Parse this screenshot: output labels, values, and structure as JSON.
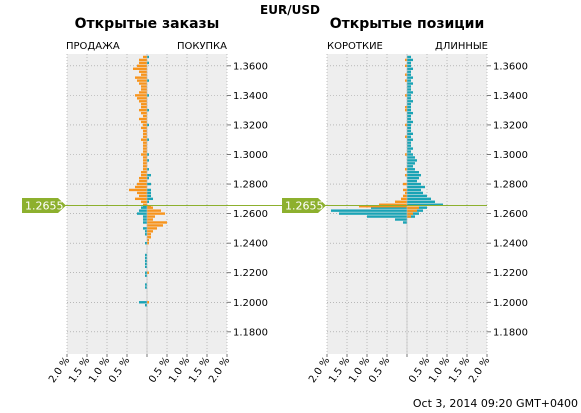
{
  "title": "EUR/USD",
  "footer": "Oct 3, 2014 09:20 GMT+0400",
  "current_price": 1.2655,
  "current_price_label": "1.2655",
  "colors": {
    "sell": "#f7941d",
    "buy": "#1aa3b5",
    "price_line": "#8db02e",
    "plot_bg": "#eeeeee",
    "grid": "#999999"
  },
  "chart_data": [
    {
      "type": "bar",
      "title": "Открытые заказы",
      "left_label": "ПРОДАЖА",
      "right_label": "ПОКУПКА",
      "orientation": "horizontal",
      "ylim": [
        1.165,
        1.368
      ],
      "xlim": [
        -2.0,
        2.0
      ],
      "y_ticks": [
        1.18,
        1.2,
        1.22,
        1.24,
        1.26,
        1.28,
        1.3,
        1.32,
        1.34,
        1.36
      ],
      "y_tick_labels": [
        "1.1800",
        "1.2000",
        "1.2200",
        "1.2400",
        "1.2600",
        "1.2800",
        "1.3000",
        "1.3200",
        "1.3400",
        "1.3600"
      ],
      "x_tick_labels": [
        "2.0 %",
        "1.5 %",
        "1.0 %",
        "0.5 %",
        "",
        "0.5 %",
        "1.0 %",
        "1.5 %",
        "2.0 %"
      ],
      "grid": true,
      "series": [
        {
          "name": "ПРОДАЖА",
          "side": "left",
          "color": "#f7941d",
          "points": [
            [
              1.366,
              0.1
            ],
            [
              1.364,
              0.2
            ],
            [
              1.362,
              0.2
            ],
            [
              1.36,
              0.25
            ],
            [
              1.358,
              0.35
            ],
            [
              1.356,
              0.2
            ],
            [
              1.354,
              0.15
            ],
            [
              1.352,
              0.3
            ],
            [
              1.35,
              0.25
            ],
            [
              1.348,
              0.2
            ],
            [
              1.346,
              0.15
            ],
            [
              1.344,
              0.15
            ],
            [
              1.342,
              0.2
            ],
            [
              1.34,
              0.3
            ],
            [
              1.338,
              0.25
            ],
            [
              1.336,
              0.2
            ],
            [
              1.334,
              0.15
            ],
            [
              1.332,
              0.15
            ],
            [
              1.33,
              0.2
            ],
            [
              1.328,
              0.15
            ],
            [
              1.326,
              0.1
            ],
            [
              1.324,
              0.2
            ],
            [
              1.322,
              0.15
            ],
            [
              1.32,
              0.1
            ],
            [
              1.318,
              0.15
            ],
            [
              1.316,
              0.1
            ],
            [
              1.314,
              0.1
            ],
            [
              1.312,
              0.1
            ],
            [
              1.31,
              0.15
            ],
            [
              1.308,
              0.1
            ],
            [
              1.306,
              0.1
            ],
            [
              1.304,
              0.1
            ],
            [
              1.302,
              0.1
            ],
            [
              1.3,
              0.15
            ],
            [
              1.298,
              0.1
            ],
            [
              1.296,
              0.1
            ],
            [
              1.294,
              0.1
            ],
            [
              1.292,
              0.1
            ],
            [
              1.29,
              0.1
            ],
            [
              1.288,
              0.15
            ],
            [
              1.286,
              0.15
            ],
            [
              1.284,
              0.2
            ],
            [
              1.282,
              0.2
            ],
            [
              1.28,
              0.25
            ],
            [
              1.278,
              0.3
            ],
            [
              1.276,
              0.45
            ],
            [
              1.274,
              0.25
            ],
            [
              1.272,
              0.2
            ],
            [
              1.27,
              0.3
            ],
            [
              1.268,
              0.15
            ],
            [
              1.266,
              0.1
            ]
          ]
        },
        {
          "name": "ПОКУПКА",
          "side": "right",
          "color": "#f7941d",
          "points": [
            [
              1.265,
              0.1
            ],
            [
              1.264,
              0.15
            ],
            [
              1.262,
              0.35
            ],
            [
              1.26,
              0.45
            ],
            [
              1.258,
              0.2
            ],
            [
              1.256,
              0.15
            ],
            [
              1.254,
              0.5
            ],
            [
              1.252,
              0.4
            ],
            [
              1.25,
              0.25
            ],
            [
              1.248,
              0.15
            ],
            [
              1.246,
              0.1
            ],
            [
              1.244,
              0.1
            ],
            [
              1.242,
              0.05
            ],
            [
              1.24,
              0.05
            ],
            [
              1.22,
              0.05
            ],
            [
              1.2,
              0.05
            ]
          ]
        },
        {
          "name": "ПРОДАЖА",
          "side": "left",
          "color": "#1aa3b5",
          "points": [
            [
              1.265,
              0.1
            ],
            [
              1.264,
              0.15
            ],
            [
              1.262,
              0.2
            ],
            [
              1.26,
              0.25
            ],
            [
              1.258,
              0.1
            ],
            [
              1.256,
              0.1
            ],
            [
              1.254,
              0.1
            ],
            [
              1.25,
              0.1
            ],
            [
              1.248,
              0.05
            ],
            [
              1.246,
              0.05
            ],
            [
              1.24,
              0.05
            ],
            [
              1.232,
              0.05
            ],
            [
              1.23,
              0.05
            ],
            [
              1.228,
              0.05
            ],
            [
              1.226,
              0.05
            ],
            [
              1.224,
              0.05
            ],
            [
              1.22,
              0.05
            ],
            [
              1.218,
              0.05
            ],
            [
              1.212,
              0.05
            ],
            [
              1.21,
              0.05
            ],
            [
              1.2,
              0.2
            ],
            [
              1.198,
              0.05
            ]
          ]
        },
        {
          "name": "ПОКУПКА",
          "side": "right",
          "color": "#1aa3b5",
          "points": [
            [
              1.366,
              0.05
            ],
            [
              1.362,
              0.05
            ],
            [
              1.35,
              0.05
            ],
            [
              1.34,
              0.05
            ],
            [
              1.33,
              0.05
            ],
            [
              1.32,
              0.05
            ],
            [
              1.31,
              0.05
            ],
            [
              1.3,
              0.05
            ],
            [
              1.296,
              0.05
            ],
            [
              1.29,
              0.05
            ],
            [
              1.286,
              0.1
            ],
            [
              1.284,
              0.05
            ],
            [
              1.28,
              0.1
            ],
            [
              1.276,
              0.1
            ],
            [
              1.274,
              0.1
            ],
            [
              1.272,
              0.1
            ],
            [
              1.27,
              0.15
            ],
            [
              1.268,
              0.05
            ]
          ]
        }
      ]
    },
    {
      "type": "bar",
      "title": "Открытые позиции",
      "left_label": "КОРОТКИЕ",
      "right_label": "ДЛИННЫЕ",
      "orientation": "horizontal",
      "ylim": [
        1.165,
        1.368
      ],
      "xlim": [
        -2.0,
        2.0
      ],
      "y_ticks": [
        1.18,
        1.2,
        1.22,
        1.24,
        1.26,
        1.28,
        1.3,
        1.32,
        1.34,
        1.36
      ],
      "y_tick_labels": [
        "1.1800",
        "1.2000",
        "1.2200",
        "1.2400",
        "1.2600",
        "1.2800",
        "1.3000",
        "1.3200",
        "1.3400",
        "1.3600"
      ],
      "x_tick_labels": [
        "2.0 %",
        "1.5 %",
        "1.0 %",
        "0.5 %",
        "",
        "0.5 %",
        "1.0 %",
        "1.5 %",
        "2.0 %"
      ],
      "grid": true,
      "series": [
        {
          "name": "КОРОТКИЕ",
          "side": "left",
          "color": "#1aa3b5",
          "points": [
            [
              1.264,
              0.9
            ],
            [
              1.262,
              1.9
            ],
            [
              1.26,
              1.7
            ],
            [
              1.258,
              1.0
            ],
            [
              1.256,
              0.3
            ],
            [
              1.254,
              0.1
            ]
          ]
        },
        {
          "name": "КОРОТКИЕ",
          "side": "left",
          "color": "#f7941d",
          "points": [
            [
              1.364,
              0.05
            ],
            [
              1.36,
              0.05
            ],
            [
              1.354,
              0.05
            ],
            [
              1.35,
              0.05
            ],
            [
              1.34,
              0.05
            ],
            [
              1.332,
              0.05
            ],
            [
              1.33,
              0.05
            ],
            [
              1.32,
              0.05
            ],
            [
              1.312,
              0.05
            ],
            [
              1.3,
              0.05
            ],
            [
              1.29,
              0.05
            ],
            [
              1.286,
              0.05
            ],
            [
              1.28,
              0.1
            ],
            [
              1.276,
              0.1
            ],
            [
              1.274,
              0.05
            ],
            [
              1.272,
              0.1
            ],
            [
              1.27,
              0.15
            ],
            [
              1.268,
              0.3
            ],
            [
              1.266,
              0.7
            ],
            [
              1.265,
              1.2
            ]
          ]
        },
        {
          "name": "ДЛИННЫЕ",
          "side": "right",
          "color": "#1aa3b5",
          "points": [
            [
              1.366,
              0.1
            ],
            [
              1.364,
              0.15
            ],
            [
              1.362,
              0.1
            ],
            [
              1.36,
              0.1
            ],
            [
              1.358,
              0.15
            ],
            [
              1.356,
              0.1
            ],
            [
              1.354,
              0.1
            ],
            [
              1.352,
              0.15
            ],
            [
              1.35,
              0.1
            ],
            [
              1.348,
              0.15
            ],
            [
              1.346,
              0.1
            ],
            [
              1.344,
              0.1
            ],
            [
              1.342,
              0.15
            ],
            [
              1.34,
              0.1
            ],
            [
              1.338,
              0.1
            ],
            [
              1.336,
              0.15
            ],
            [
              1.334,
              0.1
            ],
            [
              1.332,
              0.1
            ],
            [
              1.33,
              0.1
            ],
            [
              1.328,
              0.15
            ],
            [
              1.326,
              0.1
            ],
            [
              1.324,
              0.1
            ],
            [
              1.322,
              0.15
            ],
            [
              1.32,
              0.1
            ],
            [
              1.318,
              0.1
            ],
            [
              1.316,
              0.1
            ],
            [
              1.314,
              0.15
            ],
            [
              1.312,
              0.1
            ],
            [
              1.31,
              0.15
            ],
            [
              1.308,
              0.1
            ],
            [
              1.306,
              0.1
            ],
            [
              1.304,
              0.15
            ],
            [
              1.302,
              0.1
            ],
            [
              1.3,
              0.15
            ],
            [
              1.298,
              0.2
            ],
            [
              1.296,
              0.25
            ],
            [
              1.294,
              0.2
            ],
            [
              1.292,
              0.15
            ],
            [
              1.29,
              0.2
            ],
            [
              1.288,
              0.3
            ],
            [
              1.286,
              0.35
            ],
            [
              1.284,
              0.3
            ],
            [
              1.282,
              0.25
            ],
            [
              1.28,
              0.35
            ],
            [
              1.278,
              0.45
            ],
            [
              1.276,
              0.35
            ],
            [
              1.274,
              0.4
            ],
            [
              1.272,
              0.5
            ],
            [
              1.27,
              0.6
            ],
            [
              1.268,
              0.7
            ],
            [
              1.266,
              0.9
            ],
            [
              1.264,
              0.5
            ],
            [
              1.262,
              0.4
            ],
            [
              1.26,
              0.3
            ],
            [
              1.258,
              0.2
            ]
          ]
        },
        {
          "name": "ДЛИННЫЕ",
          "side": "right",
          "color": "#f7941d",
          "points": [
            [
              1.264,
              0.3
            ],
            [
              1.262,
              0.25
            ],
            [
              1.26,
              0.15
            ],
            [
              1.258,
              0.1
            ]
          ]
        }
      ]
    }
  ]
}
